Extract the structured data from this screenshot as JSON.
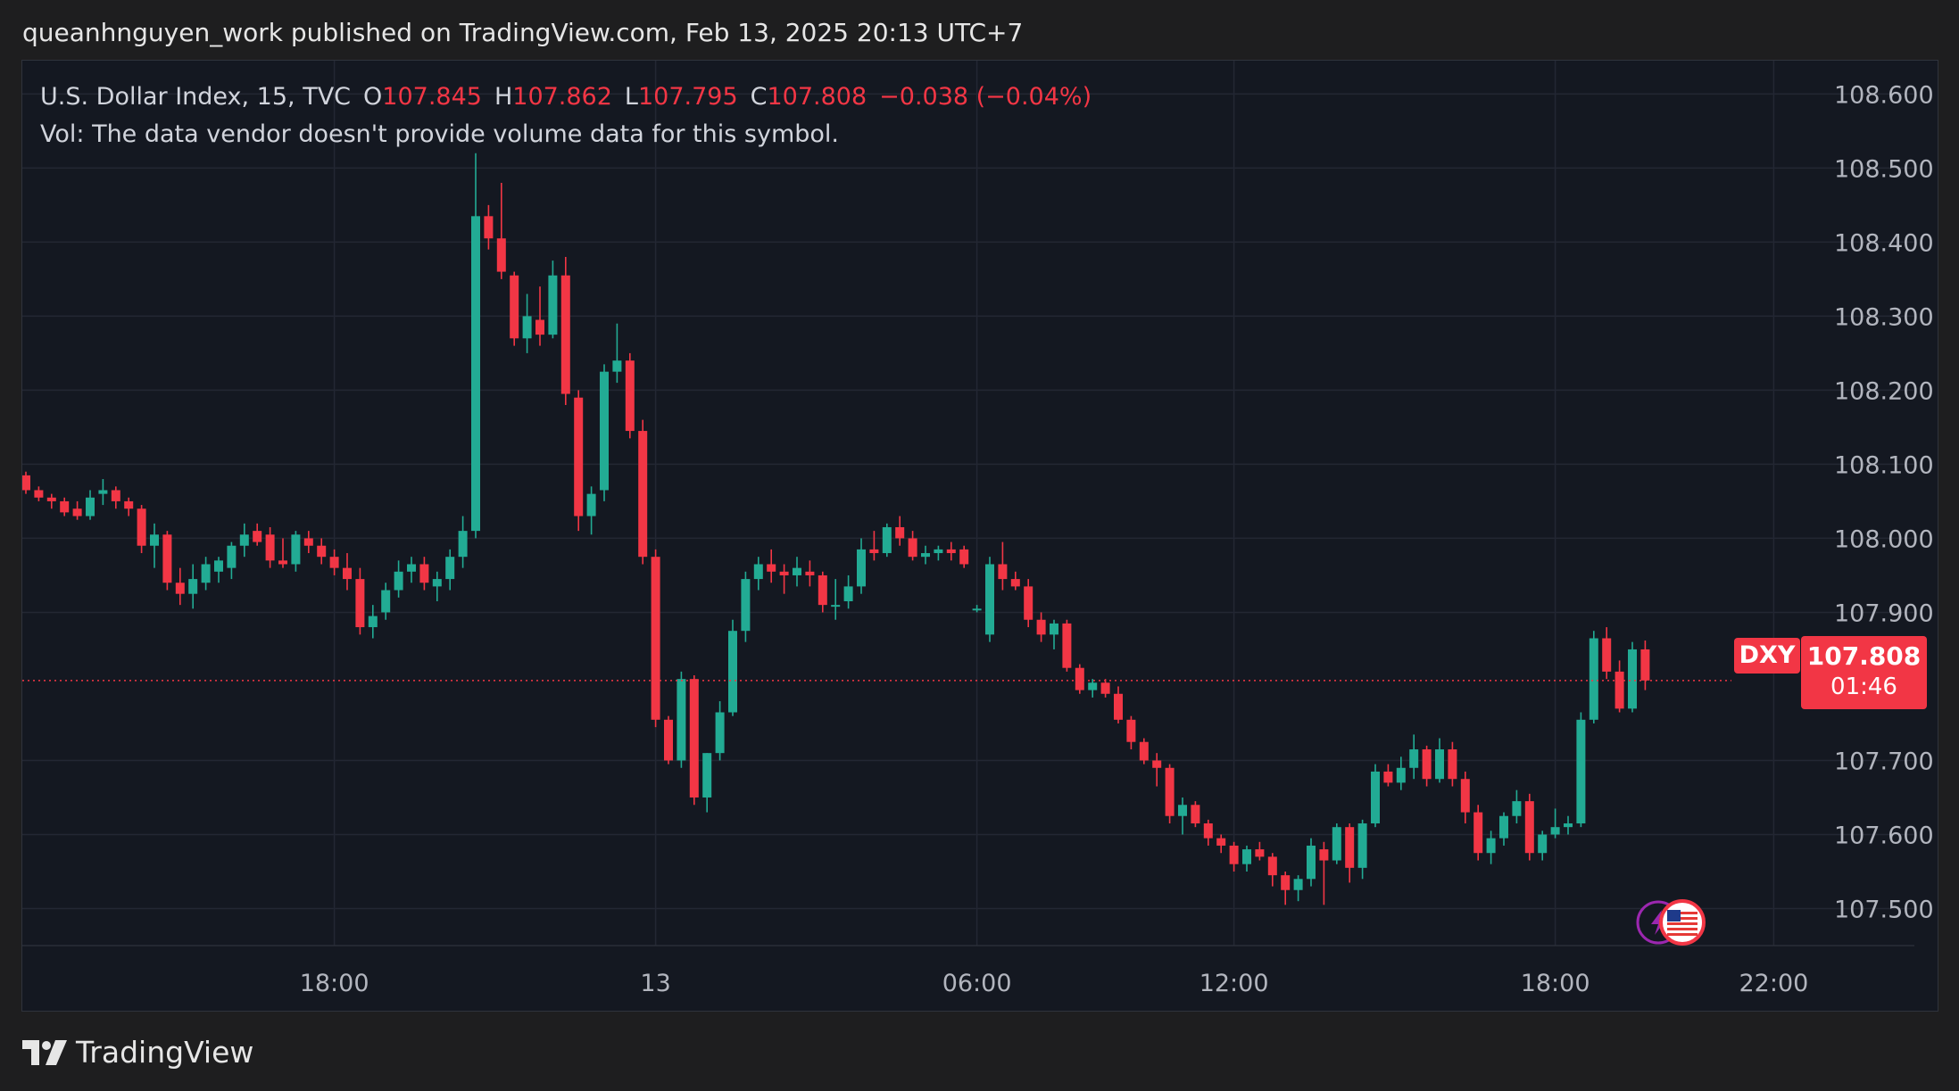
{
  "header": {
    "publisher_line": "queanhnguyen_work published on TradingView.com, Feb 13, 2025 20:13 UTC+7"
  },
  "legend": {
    "symbol_line": "U.S. Dollar Index, 15, TVC",
    "o_label": "O",
    "o_value": "107.845",
    "h_label": "H",
    "h_value": "107.862",
    "l_label": "L",
    "l_value": "107.795",
    "c_label": "C",
    "c_value": "107.808",
    "change": "−0.038 (−0.04%)",
    "volume_note": "Vol: The data vendor doesn't provide volume data for this symbol."
  },
  "price_tag": {
    "symbol": "DXY",
    "price": "107.808",
    "countdown": "01:46"
  },
  "footer": {
    "brand": "TradingView"
  },
  "colors": {
    "up": "#22ab94",
    "down": "#f23645",
    "background": "#141821",
    "grid": "#232733",
    "text": "#b2b5be"
  },
  "icons": [
    "tradingview-logo-icon",
    "lightning-event-icon",
    "us-flag-event-icon"
  ],
  "chart_data": {
    "type": "candlestick",
    "symbol": "DXY",
    "interval": "15",
    "ylim": [
      107.45,
      108.645
    ],
    "y_ticks": [
      108.6,
      108.5,
      108.4,
      108.3,
      108.2,
      108.1,
      108.0,
      107.9,
      107.7,
      107.6,
      107.5
    ],
    "y_tick_labels": [
      "108.600",
      "108.500",
      "108.400",
      "108.300",
      "108.200",
      "108.100",
      "108.000",
      "107.900",
      "107.700",
      "107.600",
      "107.500"
    ],
    "x_tick_labels": [
      "18:00",
      "13",
      "06:00",
      "12:00",
      "18:00",
      "22:00"
    ],
    "x_tick_bar_index": [
      24,
      49,
      74,
      94,
      119,
      136
    ],
    "grid": true,
    "last_price": 107.808,
    "ohlc": [
      [
        108.085,
        108.09,
        108.06,
        108.065
      ],
      [
        108.065,
        108.07,
        108.05,
        108.055
      ],
      [
        108.055,
        108.06,
        108.04,
        108.05
      ],
      [
        108.05,
        108.055,
        108.03,
        108.035
      ],
      [
        108.04,
        108.05,
        108.025,
        108.03
      ],
      [
        108.03,
        108.065,
        108.025,
        108.055
      ],
      [
        108.06,
        108.08,
        108.045,
        108.065
      ],
      [
        108.065,
        108.07,
        108.04,
        108.05
      ],
      [
        108.05,
        108.055,
        108.03,
        108.04
      ],
      [
        108.04,
        108.045,
        107.98,
        107.99
      ],
      [
        107.99,
        108.02,
        107.96,
        108.005
      ],
      [
        108.005,
        108.01,
        107.93,
        107.94
      ],
      [
        107.94,
        107.96,
        107.91,
        107.925
      ],
      [
        107.925,
        107.965,
        107.905,
        107.945
      ],
      [
        107.94,
        107.975,
        107.93,
        107.965
      ],
      [
        107.955,
        107.975,
        107.94,
        107.97
      ],
      [
        107.96,
        107.995,
        107.945,
        107.99
      ],
      [
        107.99,
        108.02,
        107.975,
        108.005
      ],
      [
        108.01,
        108.02,
        107.99,
        107.995
      ],
      [
        108.005,
        108.015,
        107.96,
        107.97
      ],
      [
        107.97,
        108.0,
        107.96,
        107.965
      ],
      [
        107.965,
        108.01,
        107.955,
        108.005
      ],
      [
        108.0,
        108.01,
        107.98,
        107.99
      ],
      [
        107.99,
        108.0,
        107.965,
        107.975
      ],
      [
        107.975,
        107.985,
        107.95,
        107.96
      ],
      [
        107.96,
        107.98,
        107.93,
        107.945
      ],
      [
        107.945,
        107.96,
        107.87,
        107.88
      ],
      [
        107.88,
        107.91,
        107.865,
        107.895
      ],
      [
        107.9,
        107.94,
        107.89,
        107.93
      ],
      [
        107.93,
        107.97,
        107.92,
        107.955
      ],
      [
        107.955,
        107.975,
        107.94,
        107.965
      ],
      [
        107.965,
        107.975,
        107.93,
        107.94
      ],
      [
        107.935,
        107.955,
        107.915,
        107.945
      ],
      [
        107.945,
        107.985,
        107.93,
        107.975
      ],
      [
        107.975,
        108.03,
        107.96,
        108.01
      ],
      [
        108.01,
        108.52,
        108.0,
        108.435
      ],
      [
        108.435,
        108.45,
        108.39,
        108.405
      ],
      [
        108.405,
        108.48,
        108.35,
        108.36
      ],
      [
        108.355,
        108.36,
        108.26,
        108.27
      ],
      [
        108.27,
        108.33,
        108.25,
        108.3
      ],
      [
        108.295,
        108.34,
        108.26,
        108.275
      ],
      [
        108.275,
        108.375,
        108.27,
        108.355
      ],
      [
        108.355,
        108.38,
        108.18,
        108.195
      ],
      [
        108.19,
        108.2,
        108.01,
        108.03
      ],
      [
        108.03,
        108.07,
        108.005,
        108.06
      ],
      [
        108.065,
        108.235,
        108.05,
        108.225
      ],
      [
        108.225,
        108.29,
        108.21,
        108.24
      ],
      [
        108.24,
        108.25,
        108.135,
        108.145
      ],
      [
        108.145,
        108.16,
        107.965,
        107.975
      ],
      [
        107.975,
        107.985,
        107.745,
        107.755
      ],
      [
        107.755,
        107.76,
        107.695,
        107.7
      ],
      [
        107.7,
        107.82,
        107.69,
        107.81
      ],
      [
        107.81,
        107.815,
        107.64,
        107.65
      ],
      [
        107.65,
        107.71,
        107.63,
        107.71
      ],
      [
        107.71,
        107.78,
        107.7,
        107.765
      ],
      [
        107.765,
        107.89,
        107.76,
        107.875
      ],
      [
        107.875,
        107.955,
        107.86,
        107.945
      ],
      [
        107.945,
        107.975,
        107.93,
        107.965
      ],
      [
        107.965,
        107.985,
        107.94,
        107.955
      ],
      [
        107.955,
        107.965,
        107.925,
        107.95
      ],
      [
        107.95,
        107.975,
        107.935,
        107.96
      ],
      [
        107.955,
        107.97,
        107.935,
        107.95
      ],
      [
        107.95,
        107.955,
        107.9,
        107.91
      ],
      [
        107.91,
        107.945,
        107.89,
        107.91
      ],
      [
        107.915,
        107.95,
        107.905,
        107.935
      ],
      [
        107.935,
        108.0,
        107.925,
        107.985
      ],
      [
        107.985,
        108.01,
        107.97,
        107.98
      ],
      [
        107.98,
        108.02,
        107.975,
        108.015
      ],
      [
        108.015,
        108.03,
        107.99,
        108.0
      ],
      [
        108.0,
        108.01,
        107.97,
        107.975
      ],
      [
        107.975,
        107.99,
        107.965,
        107.98
      ],
      [
        107.98,
        107.99,
        107.97,
        107.985
      ],
      [
        107.985,
        107.995,
        107.97,
        107.98
      ],
      [
        107.985,
        107.99,
        107.96,
        107.965
      ],
      [
        107.905,
        107.91,
        107.9,
        107.905
      ],
      [
        107.87,
        107.975,
        107.86,
        107.965
      ],
      [
        107.965,
        107.995,
        107.93,
        107.945
      ],
      [
        107.945,
        107.955,
        107.93,
        107.935
      ],
      [
        107.935,
        107.945,
        107.88,
        107.89
      ],
      [
        107.89,
        107.9,
        107.86,
        107.87
      ],
      [
        107.87,
        107.89,
        107.85,
        107.885
      ],
      [
        107.885,
        107.89,
        107.82,
        107.825
      ],
      [
        107.825,
        107.83,
        107.79,
        107.795
      ],
      [
        107.795,
        107.81,
        107.785,
        107.805
      ],
      [
        107.805,
        107.81,
        107.785,
        107.79
      ],
      [
        107.79,
        107.8,
        107.75,
        107.755
      ],
      [
        107.755,
        107.76,
        107.715,
        107.725
      ],
      [
        107.725,
        107.73,
        107.695,
        107.7
      ],
      [
        107.7,
        107.71,
        107.665,
        107.69
      ],
      [
        107.69,
        107.695,
        107.615,
        107.625
      ],
      [
        107.625,
        107.65,
        107.6,
        107.64
      ],
      [
        107.64,
        107.645,
        107.61,
        107.615
      ],
      [
        107.615,
        107.62,
        107.585,
        107.595
      ],
      [
        107.595,
        107.6,
        107.575,
        107.585
      ],
      [
        107.585,
        107.59,
        107.55,
        107.56
      ],
      [
        107.56,
        107.585,
        107.55,
        107.58
      ],
      [
        107.58,
        107.59,
        107.565,
        107.57
      ],
      [
        107.57,
        107.575,
        107.53,
        107.545
      ],
      [
        107.545,
        107.55,
        107.505,
        107.525
      ],
      [
        107.525,
        107.545,
        107.51,
        107.54
      ],
      [
        107.54,
        107.595,
        107.53,
        107.585
      ],
      [
        107.58,
        107.59,
        107.505,
        107.565
      ],
      [
        107.565,
        107.615,
        107.56,
        107.61
      ],
      [
        107.61,
        107.615,
        107.535,
        107.555
      ],
      [
        107.555,
        107.62,
        107.54,
        107.615
      ],
      [
        107.615,
        107.695,
        107.61,
        107.685
      ],
      [
        107.685,
        107.695,
        107.665,
        107.67
      ],
      [
        107.67,
        107.705,
        107.66,
        107.69
      ],
      [
        107.69,
        107.735,
        107.675,
        107.715
      ],
      [
        107.715,
        107.72,
        107.665,
        107.675
      ],
      [
        107.675,
        107.73,
        107.67,
        107.715
      ],
      [
        107.715,
        107.725,
        107.665,
        107.675
      ],
      [
        107.675,
        107.685,
        107.615,
        107.63
      ],
      [
        107.63,
        107.64,
        107.565,
        107.575
      ],
      [
        107.575,
        107.605,
        107.56,
        107.595
      ],
      [
        107.595,
        107.63,
        107.585,
        107.625
      ],
      [
        107.625,
        107.66,
        107.615,
        107.645
      ],
      [
        107.645,
        107.655,
        107.565,
        107.575
      ],
      [
        107.575,
        107.605,
        107.565,
        107.6
      ],
      [
        107.6,
        107.635,
        107.595,
        107.61
      ],
      [
        107.61,
        107.625,
        107.6,
        107.615
      ],
      [
        107.615,
        107.765,
        107.61,
        107.755
      ],
      [
        107.755,
        107.875,
        107.75,
        107.865
      ],
      [
        107.865,
        107.88,
        107.81,
        107.82
      ],
      [
        107.82,
        107.835,
        107.765,
        107.77
      ],
      [
        107.77,
        107.86,
        107.765,
        107.85
      ],
      [
        107.85,
        107.862,
        107.795,
        107.808
      ]
    ]
  }
}
